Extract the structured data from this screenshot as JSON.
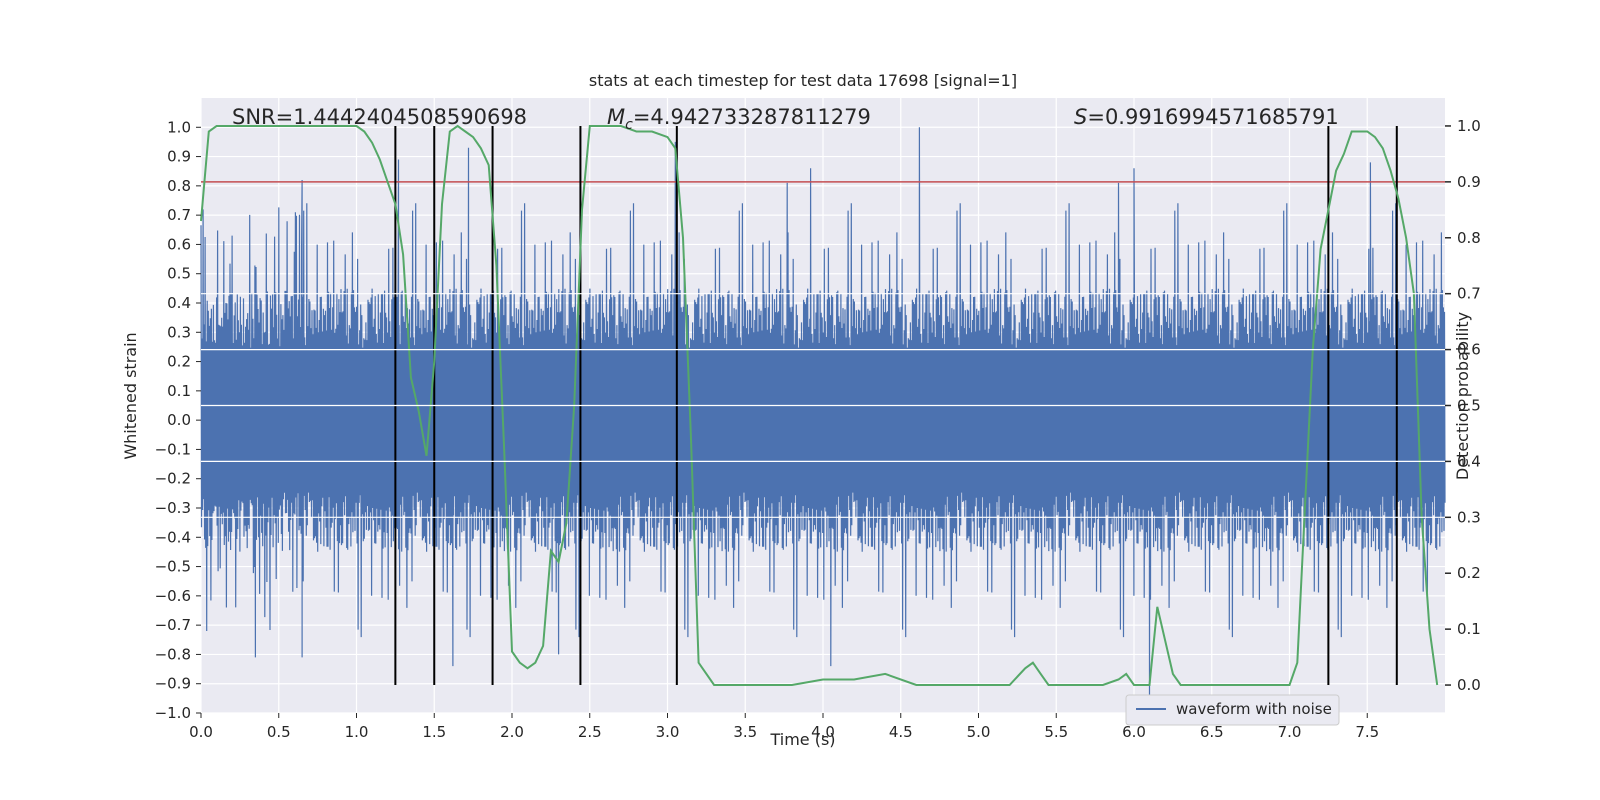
{
  "chart_data": {
    "type": "line",
    "title": "stats at each timestep for test data 17698 [signal=1]",
    "xlabel": "Time (s)",
    "ylabel_left": "Whitened strain",
    "ylabel_right": "Detection probability",
    "xlim": [
      0.0,
      8.0
    ],
    "ylim_left": [
      -1.0,
      1.1
    ],
    "ylim_right": [
      -0.05,
      1.05
    ],
    "x_ticks": [
      "0.0",
      "0.5",
      "1.0",
      "1.5",
      "2.0",
      "2.5",
      "3.0",
      "3.5",
      "4.0",
      "4.5",
      "5.0",
      "5.5",
      "6.0",
      "6.5",
      "7.0",
      "7.5"
    ],
    "y_ticks_left": [
      "−1.0",
      "−0.9",
      "−0.8",
      "−0.7",
      "−0.6",
      "−0.5",
      "−0.4",
      "−0.3",
      "−0.2",
      "−0.1",
      "0.0",
      "0.1",
      "0.2",
      "0.3",
      "0.4",
      "0.5",
      "0.6",
      "0.7",
      "0.8",
      "0.9",
      "1.0"
    ],
    "y_ticks_right": [
      "0.0",
      "0.1",
      "0.2",
      "0.3",
      "0.4",
      "0.5",
      "0.6",
      "0.7",
      "0.8",
      "0.9",
      "1.0"
    ],
    "grid": true,
    "legend": {
      "position": "lower-right",
      "entries": [
        "waveform with noise"
      ]
    },
    "annotations": {
      "snr": "SNR=1.4442404508590698",
      "mc_symbol": "M",
      "mc_sub": "c",
      "mc_value": "=4.942733287811279",
      "s_symbol": "S",
      "s_value": "=0.9916994571685791"
    },
    "threshold": {
      "axis": "right",
      "value": 0.9,
      "color": "#c44e52"
    },
    "vertical_lines": [
      1.25,
      1.5,
      1.875,
      2.44,
      3.06,
      7.25,
      7.69
    ],
    "waveform": {
      "name": "waveform with noise",
      "color": "#4c72b0",
      "x_range": [
        0.0,
        8.0
      ],
      "core_amplitude": 0.45,
      "peaks_up": [
        [
          0.65,
          0.82
        ],
        [
          1.25,
          0.62
        ],
        [
          1.27,
          0.89
        ],
        [
          1.72,
          0.93
        ],
        [
          3.05,
          0.95
        ],
        [
          3.77,
          0.81
        ],
        [
          3.92,
          0.86
        ],
        [
          4.62,
          1.0
        ],
        [
          5.9,
          0.81
        ],
        [
          6.0,
          0.86
        ],
        [
          7.52,
          0.88
        ]
      ],
      "peaks_down": [
        [
          0.35,
          -0.81
        ],
        [
          0.65,
          -0.81
        ],
        [
          1.25,
          -0.76
        ],
        [
          1.62,
          -0.84
        ],
        [
          2.3,
          -0.8
        ],
        [
          4.05,
          -0.84
        ],
        [
          6.1,
          -0.95
        ]
      ]
    },
    "detection_probability": {
      "color": "#55a868",
      "x": [
        0.0,
        0.05,
        0.1,
        0.2,
        0.3,
        0.5,
        0.7,
        0.9,
        1.0,
        1.05,
        1.1,
        1.15,
        1.2,
        1.25,
        1.3,
        1.35,
        1.4,
        1.45,
        1.5,
        1.55,
        1.6,
        1.65,
        1.7,
        1.75,
        1.8,
        1.85,
        1.9,
        1.95,
        2.0,
        2.05,
        2.1,
        2.15,
        2.2,
        2.25,
        2.3,
        2.35,
        2.4,
        2.45,
        2.5,
        2.55,
        2.6,
        2.7,
        2.8,
        2.9,
        3.0,
        3.05,
        3.1,
        3.15,
        3.2,
        3.3,
        3.4,
        3.6,
        3.8,
        4.0,
        4.2,
        4.4,
        4.6,
        4.8,
        5.0,
        5.2,
        5.3,
        5.35,
        5.4,
        5.45,
        5.5,
        5.6,
        5.7,
        5.8,
        5.9,
        5.95,
        6.0,
        6.05,
        6.1,
        6.15,
        6.2,
        6.25,
        6.3,
        6.35,
        6.4,
        6.5,
        6.6,
        6.8,
        7.0,
        7.05,
        7.1,
        7.15,
        7.2,
        7.25,
        7.3,
        7.35,
        7.4,
        7.45,
        7.5,
        7.55,
        7.6,
        7.65,
        7.7,
        7.75,
        7.8,
        7.85,
        7.9,
        7.95
      ],
      "y": [
        0.83,
        0.99,
        1.0,
        1.0,
        1.0,
        1.0,
        1.0,
        1.0,
        1.0,
        0.99,
        0.97,
        0.94,
        0.9,
        0.86,
        0.77,
        0.55,
        0.49,
        0.41,
        0.58,
        0.86,
        0.99,
        1.0,
        0.99,
        0.98,
        0.96,
        0.93,
        0.75,
        0.42,
        0.06,
        0.04,
        0.03,
        0.04,
        0.07,
        0.24,
        0.22,
        0.29,
        0.5,
        0.85,
        1.0,
        1.0,
        1.0,
        1.0,
        0.99,
        0.99,
        0.98,
        0.96,
        0.8,
        0.45,
        0.04,
        0.0,
        0.0,
        0.0,
        0.0,
        0.01,
        0.01,
        0.02,
        0.0,
        0.0,
        0.0,
        0.0,
        0.03,
        0.04,
        0.02,
        0.0,
        0.0,
        0.0,
        0.0,
        0.0,
        0.01,
        0.02,
        0.0,
        0.0,
        0.0,
        0.14,
        0.08,
        0.02,
        0.0,
        0.0,
        0.0,
        0.0,
        0.0,
        0.0,
        0.0,
        0.04,
        0.32,
        0.6,
        0.78,
        0.85,
        0.92,
        0.95,
        0.99,
        0.99,
        0.99,
        0.98,
        0.96,
        0.92,
        0.87,
        0.8,
        0.7,
        0.3,
        0.1,
        0.0
      ]
    }
  }
}
